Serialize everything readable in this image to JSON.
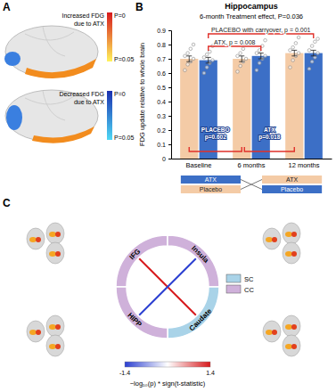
{
  "chart_data": {
    "type": "bar",
    "panel_label": "B",
    "title": "Hippocampus",
    "subtitle": "6-month Treatment effect, P=0.036",
    "y_label": "FDG update relative to whole brain",
    "categories": [
      "Baseline",
      "6 months",
      "12 months"
    ],
    "series": [
      {
        "color": "#f4cba6",
        "values": [
          0.7,
          0.7,
          0.74
        ],
        "errors": [
          0.02,
          0.02,
          0.02
        ],
        "points": [
          [
            0.62,
            0.66,
            0.68,
            0.7,
            0.72,
            0.74,
            0.77,
            0.8
          ],
          [
            0.61,
            0.65,
            0.68,
            0.7,
            0.72,
            0.74,
            0.77,
            0.81
          ],
          [
            0.64,
            0.69,
            0.72,
            0.74,
            0.76,
            0.78,
            0.81,
            0.85
          ]
        ]
      },
      {
        "color": "#3c6fc6",
        "values": [
          0.69,
          0.72,
          0.74
        ],
        "errors": [
          0.02,
          0.02,
          0.02
        ],
        "points": [
          [
            0.6,
            0.64,
            0.67,
            0.69,
            0.71,
            0.73,
            0.75,
            0.79
          ],
          [
            0.62,
            0.67,
            0.7,
            0.72,
            0.74,
            0.76,
            0.79,
            0.83
          ],
          [
            0.63,
            0.68,
            0.71,
            0.74,
            0.76,
            0.79,
            0.82,
            0.84
          ]
        ]
      }
    ],
    "ylim": [
      0,
      0.9
    ],
    "yticks": [
      0,
      0.1,
      0.2,
      0.3,
      0.4,
      0.5,
      0.6,
      0.7,
      0.8,
      0.9
    ],
    "grid": false,
    "annotations": [
      {
        "lines": [
          "PLACEBO with carryover, p = 0.001"
        ],
        "color": "#e0302a"
      },
      {
        "lines": [
          "ATX, p = 0.008"
        ],
        "color": "#e0302a"
      },
      {
        "lines": [
          "PLACEBO",
          "p=0.602"
        ],
        "color": "#e0302a"
      },
      {
        "lines": [
          "ATX",
          "p=0.018"
        ],
        "color": "#e0302a"
      }
    ],
    "schedule": [
      [
        {
          "text": "ATX",
          "color": "#3c6fc6"
        },
        {
          "text": "ATX",
          "color": "#f4cba6"
        }
      ],
      [
        {
          "text": "Placebo",
          "color": "#f4cba6"
        },
        {
          "text": "Placebo",
          "color": "#3c6fc6"
        }
      ]
    ]
  },
  "panel_a": {
    "label": "A",
    "colorbars": [
      {
        "title": [
          "Increased FDG",
          "due to ATX"
        ],
        "top": "P=0",
        "bottom": "P=0.05",
        "colors": [
          "#d7191c",
          "#fff35c"
        ]
      },
      {
        "title": [
          "Decreased FDG",
          "due to ATX"
        ],
        "top": "P=0",
        "bottom": "P=0.05",
        "colors": [
          "#1a2fb0",
          "#4fd9f5"
        ]
      }
    ]
  },
  "panel_c": {
    "label": "C",
    "regions": [
      {
        "name": "IFG",
        "group": "CC"
      },
      {
        "name": "Insula",
        "group": "CC"
      },
      {
        "name": "Caudate",
        "group": "SC"
      },
      {
        "name": "HIPP",
        "group": "CC"
      }
    ],
    "legend": [
      {
        "name": "SC",
        "color": "#a9d3e8"
      },
      {
        "name": "CC",
        "color": "#cfb1da"
      }
    ],
    "connections": [
      {
        "from": "IFG",
        "to": "Caudate",
        "value": 1.4
      },
      {
        "from": "Insula",
        "to": "HIPP",
        "value": -1.4
      }
    ],
    "colorbar": {
      "label": "−log₁₀(p) * sign(t-statistic)",
      "range": [
        -1.4,
        1.4
      ],
      "ticks": [
        -1.4,
        1.4
      ]
    }
  }
}
